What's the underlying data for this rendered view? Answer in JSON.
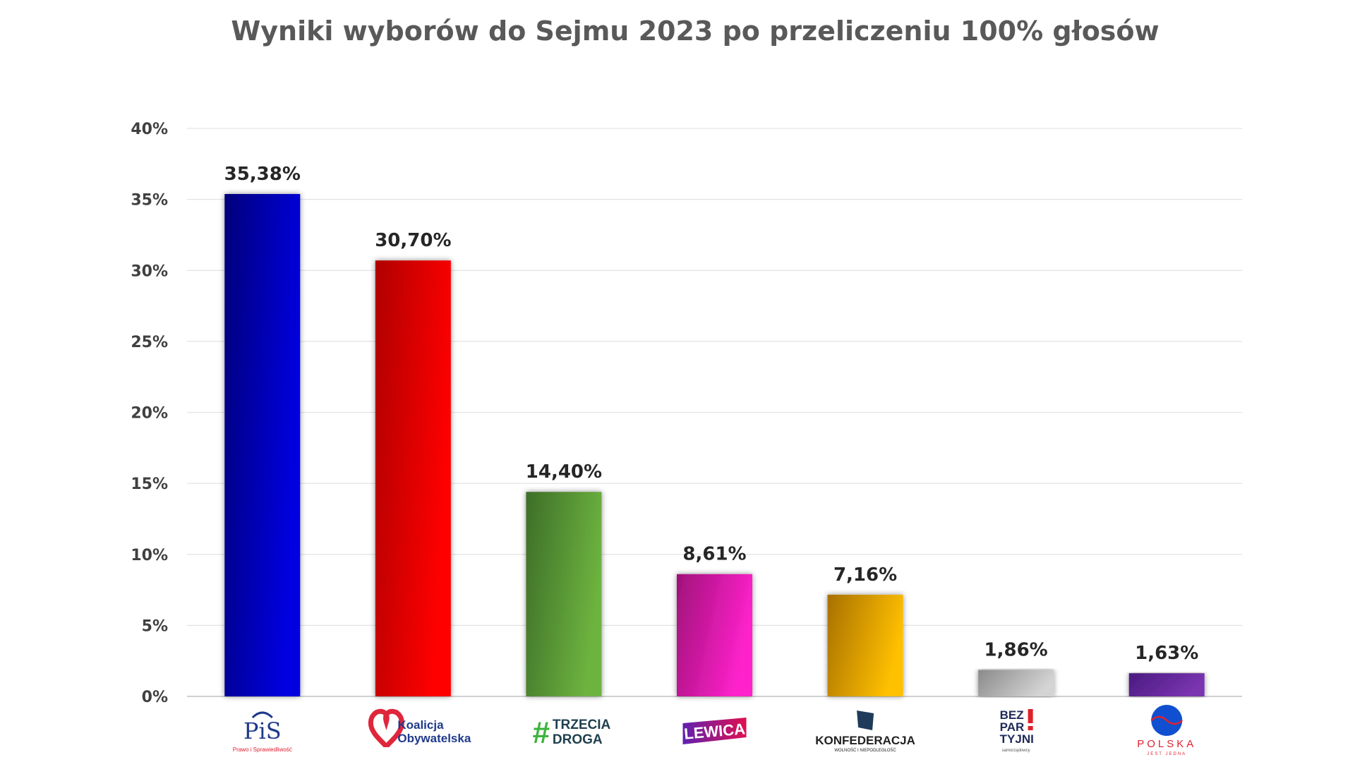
{
  "chart_data": {
    "type": "bar",
    "title": "Wyniki wyborów do Sejmu 2023 po przeliczeniu 100% głosów",
    "xlabel": "",
    "ylabel": "",
    "ylim": [
      0,
      40
    ],
    "yticks": [
      0,
      5,
      10,
      15,
      20,
      25,
      30,
      35,
      40
    ],
    "ytick_labels": [
      "0%",
      "5%",
      "10%",
      "15%",
      "20%",
      "25%",
      "30%",
      "35%",
      "40%"
    ],
    "grid": true,
    "legend": "none",
    "categories": [
      "PiS",
      "Koalicja Obywatelska",
      "Trzecia Droga",
      "Lewica",
      "Konfederacja",
      "Bezpartyjni Samorządowcy",
      "Polska Jest Jedna"
    ],
    "values": [
      35.38,
      30.7,
      14.4,
      8.61,
      7.16,
      1.86,
      1.63
    ],
    "data_labels": [
      "35,38%",
      "30,70%",
      "14,40%",
      "8,61%",
      "7,16%",
      "1,86%",
      "1,63%"
    ],
    "colors": [
      [
        "#00007a",
        "#0000e0"
      ],
      [
        "#b00000",
        "#ff0000"
      ],
      [
        "#3d6e28",
        "#6db33f"
      ],
      [
        "#a0107a",
        "#ff22cc"
      ],
      [
        "#a87000",
        "#ffc000"
      ],
      [
        "#8a8a8a",
        "#d4d4d4"
      ],
      [
        "#4a1a80",
        "#7a35b0"
      ]
    ],
    "logos": [
      {
        "lines": [
          "PiS"
        ],
        "sub": "Prawo i Sprawiedliwość",
        "color": "#1f3a8a",
        "accent": "#e02030"
      },
      {
        "lines": [
          "Koalicja",
          "Obywatelska"
        ],
        "color": "#1f3a8a",
        "accent": "#e0263b"
      },
      {
        "lines": [
          "#",
          "TRZECIA",
          "DROGA"
        ],
        "color": "#1f3f4f",
        "accent": "#3cb43c"
      },
      {
        "lines": [
          "LEWICA"
        ],
        "color": "#ffffff",
        "accent": "#7020a0"
      },
      {
        "lines": [
          "KONFEDERACJA"
        ],
        "sub": "WOLNOŚĆ I NIEPODLEGŁOŚĆ",
        "color": "#222222",
        "accent": "#1f3a5a"
      },
      {
        "lines": [
          "BEZ",
          "PAR",
          "TYJNI"
        ],
        "sub": "samorządowcy",
        "color": "#1f2a5a",
        "accent": "#e0202a"
      },
      {
        "lines": [
          "POLSKA"
        ],
        "sub": "JEST JEDNA",
        "color": "#e02030",
        "accent": "#1050d0"
      }
    ]
  }
}
